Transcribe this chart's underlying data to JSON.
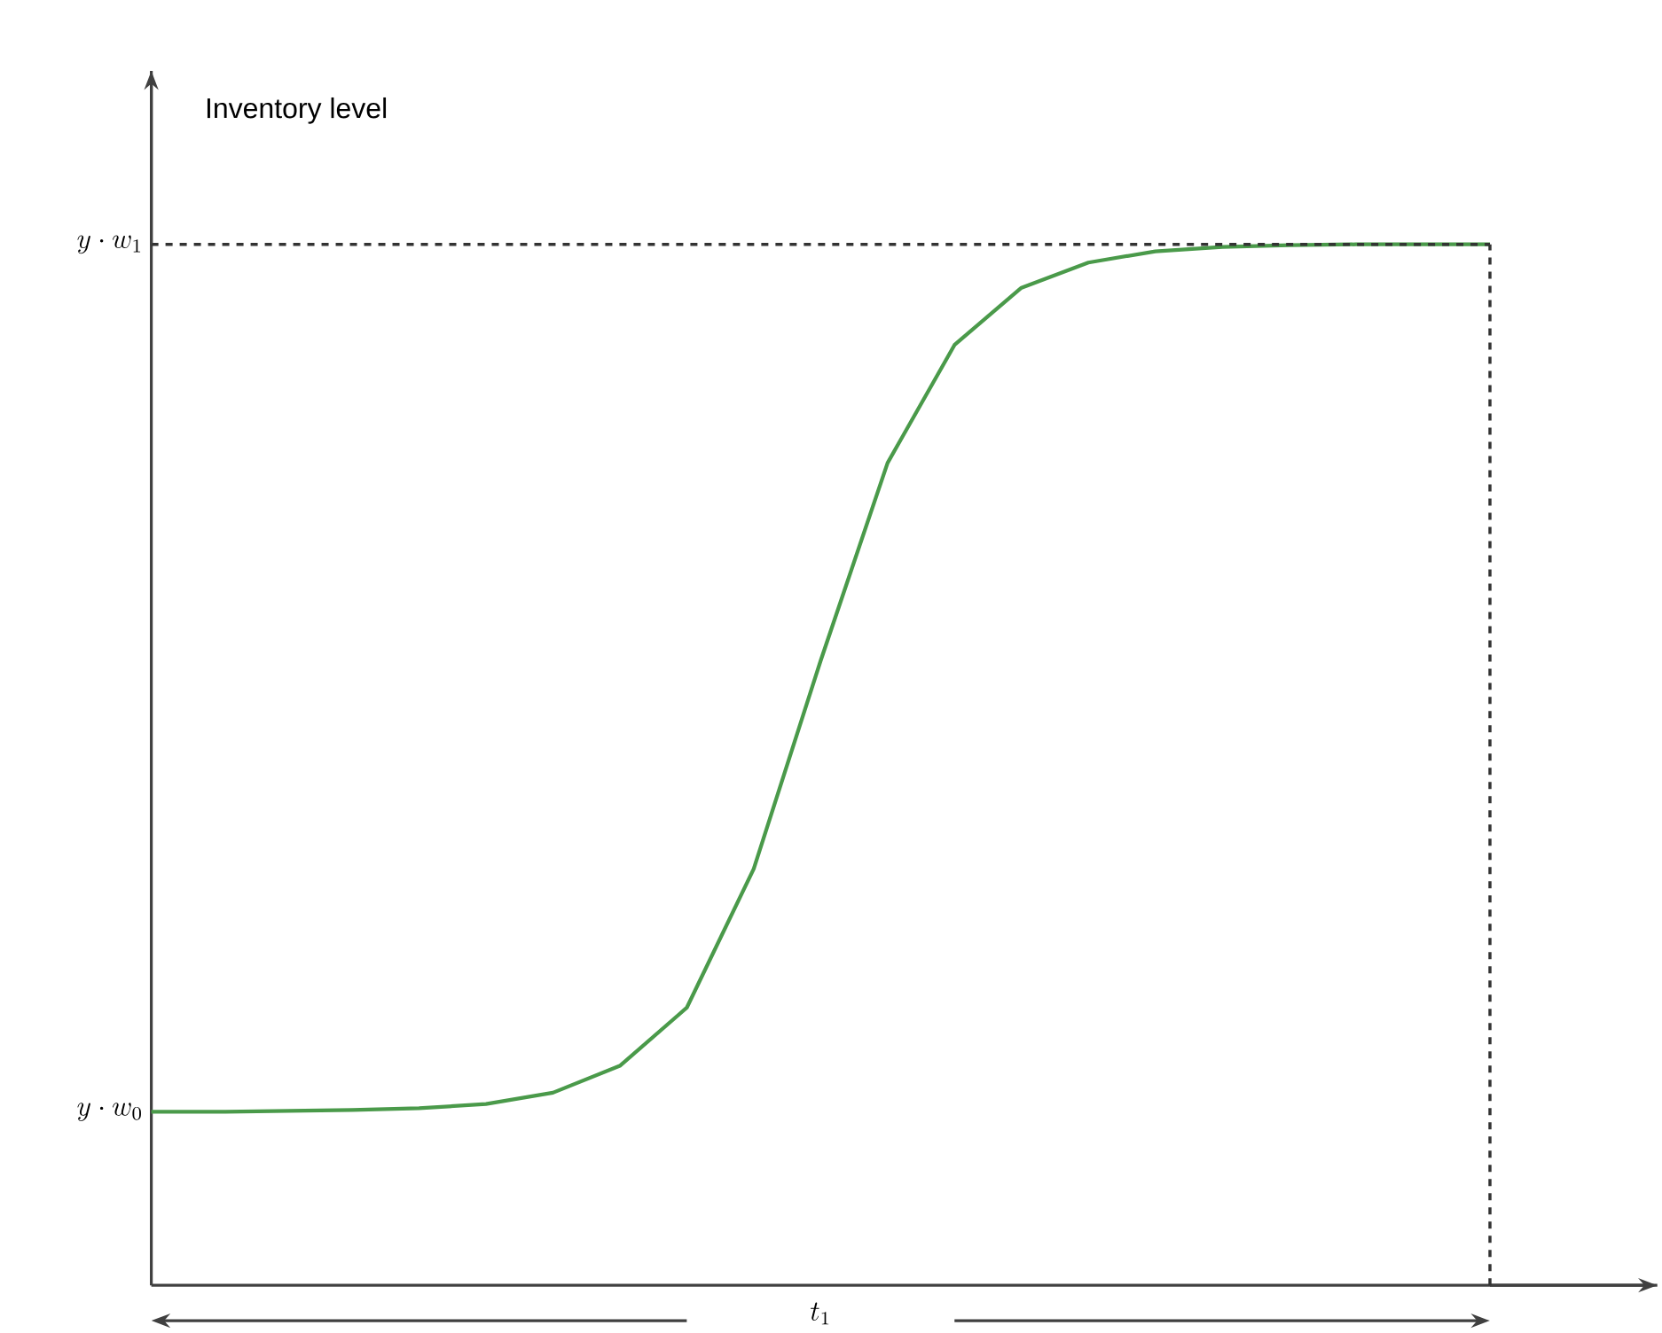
{
  "chart_data": {
    "type": "line",
    "ylabel": "Inventory level",
    "xlabel": "t_1",
    "categories": [
      null,
      null,
      null,
      null,
      null,
      null,
      null,
      null,
      null,
      null,
      null,
      null,
      null,
      null,
      null,
      null,
      null,
      null,
      null,
      null,
      null
    ],
    "ylim": [
      -0.2,
      1.2
    ],
    "yticks": [
      {
        "value": 0,
        "label": "y \\cdot w_0"
      },
      {
        "value": 1,
        "label": "y \\cdot w_1"
      }
    ],
    "tick_labels": "y",
    "marker": "none",
    "line_style": "solid",
    "series": [
      {
        "color": "#4a9a4a",
        "values": [
          0,
          0,
          0.001,
          0.002,
          0.004,
          0.009,
          0.022,
          0.053,
          0.12,
          0.28,
          0.52,
          0.748,
          0.884,
          0.95,
          0.979,
          0.992,
          0.997,
          0.999,
          1.0,
          1.0,
          1.0
        ]
      }
    ],
    "ref_lines": [
      {
        "axis": "y",
        "value": 1,
        "line_style": "dashed",
        "color": "#333333"
      }
    ]
  }
}
